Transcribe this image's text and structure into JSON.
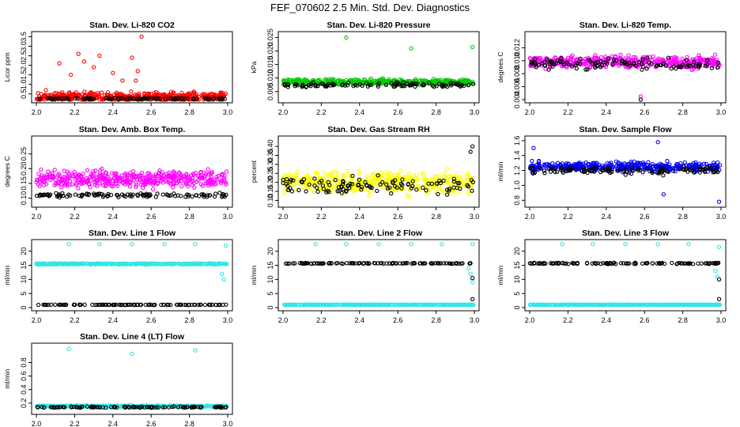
{
  "title": "FEF_070602  2.5 Min. Std. Dev. Diagnostics",
  "colors": {
    "red": "#ff0000",
    "green": "#00cc00",
    "magenta": "#ff00ff",
    "yellow": "#ffff00",
    "blue": "#0000ff",
    "cyan": "#33e6e6",
    "black": "#000000"
  },
  "chart_data": [
    {
      "type": "scatter",
      "title": "Stan. Dev. Li-820 CO2",
      "ylabel": "Licor ppm",
      "xlabel": "",
      "xlim": [
        2.0,
        3.0
      ],
      "ylim": [
        0.2,
        3.6
      ],
      "xticks": [
        "2.0",
        "2.2",
        "2.4",
        "2.6",
        "2.8",
        "3.0"
      ],
      "yticks": [
        "0.5",
        "1.0",
        "1.5",
        "2.0",
        "2.5",
        "3.0",
        "3.5"
      ],
      "series": [
        {
          "name": "color",
          "color": "red",
          "baseline": 0.35,
          "spread": 0.35,
          "outliers": [
            [
              2.05,
              0.7
            ],
            [
              2.12,
              2.1
            ],
            [
              2.18,
              1.5
            ],
            [
              2.22,
              2.6
            ],
            [
              2.25,
              2.2
            ],
            [
              2.3,
              1.9
            ],
            [
              2.33,
              2.5
            ],
            [
              2.4,
              1.6
            ],
            [
              2.45,
              1.2
            ],
            [
              2.5,
              2.4
            ],
            [
              2.53,
              1.7
            ],
            [
              2.55,
              3.5
            ],
            [
              2.52,
              1.2
            ]
          ]
        },
        {
          "name": "black",
          "color": "black",
          "baseline": 0.25,
          "spread": 0.04
        }
      ]
    },
    {
      "type": "scatter",
      "title": "Stan. Dev. Li-820 Pressure",
      "ylabel": "kPa",
      "xlabel": "",
      "xlim": [
        2.0,
        3.0
      ],
      "ylim": [
        0.002,
        0.026
      ],
      "xticks": [
        "2.0",
        "2.2",
        "2.4",
        "2.6",
        "2.8",
        "3.0"
      ],
      "yticks": [
        "0.005",
        "0.010",
        "0.015",
        "0.020",
        "0.025"
      ],
      "series": [
        {
          "name": "color",
          "color": "green",
          "baseline": 0.0085,
          "spread": 0.0015,
          "outliers": [
            [
              2.33,
              0.025
            ],
            [
              2.67,
              0.021
            ],
            [
              2.99,
              0.0215
            ]
          ]
        },
        {
          "name": "black",
          "color": "black",
          "baseline": 0.0075,
          "spread": 0.0012
        }
      ]
    },
    {
      "type": "scatter",
      "title": "Stan. Dev. Li-820 Temp.",
      "ylabel": "degrees C",
      "xlabel": "",
      "xlim": [
        2.0,
        3.0
      ],
      "ylim": [
        0.004,
        0.014
      ],
      "xticks": [
        "2.0",
        "2.2",
        "2.4",
        "2.6",
        "2.8",
        "3.0"
      ],
      "yticks": [
        "0.004",
        "0.006",
        "0.008",
        "0.010",
        "0.012"
      ],
      "series": [
        {
          "name": "color",
          "color": "magenta",
          "baseline": 0.0098,
          "spread": 0.0014,
          "outliers": [
            [
              2.58,
              0.0045
            ]
          ]
        },
        {
          "name": "black",
          "color": "black",
          "baseline": 0.0095,
          "spread": 0.0012,
          "outliers": [
            [
              2.58,
              0.0038
            ]
          ]
        }
      ]
    },
    {
      "type": "scatter",
      "title": "Stan. Dev. Amb. Box Temp.",
      "ylabel": "degrees C",
      "xlabel": "",
      "xlim": [
        2.0,
        3.0
      ],
      "ylim": [
        0.08,
        0.3
      ],
      "xticks": [
        "2.0",
        "2.2",
        "2.4",
        "2.6",
        "2.8",
        "3.0"
      ],
      "yticks": [
        "0.10",
        "0.15",
        "0.20",
        "0.25"
      ],
      "series": [
        {
          "name": "color",
          "color": "magenta",
          "baseline": 0.165,
          "spread": 0.04
        },
        {
          "name": "black",
          "color": "black",
          "baseline": 0.11,
          "spread": 0.01
        }
      ]
    },
    {
      "type": "scatter",
      "title": "Stan. Dev. Gas Stream RH",
      "ylabel": "percent",
      "xlabel": "",
      "xlim": [
        2.0,
        3.0
      ],
      "ylim": [
        0.08,
        0.44
      ],
      "xticks": [
        "2.0",
        "2.2",
        "2.4",
        "2.6",
        "2.8",
        "3.0"
      ],
      "yticks": [
        "0.10",
        "0.15",
        "0.20",
        "0.25",
        "0.30",
        "0.35",
        "0.40"
      ],
      "series": [
        {
          "name": "color",
          "color": "yellow",
          "baseline": 0.2,
          "spread": 0.09
        },
        {
          "name": "black",
          "color": "black",
          "baseline": 0.18,
          "spread": 0.07,
          "outliers": [
            [
              2.99,
              0.4
            ],
            [
              2.98,
              0.37
            ]
          ]
        }
      ]
    },
    {
      "type": "scatter",
      "title": "Stan. Dev. Sample Flow",
      "ylabel": "ml/min",
      "xlabel": "",
      "xlim": [
        2.0,
        3.0
      ],
      "ylim": [
        0.75,
        1.62
      ],
      "xticks": [
        "2.0",
        "2.2",
        "2.4",
        "2.6",
        "2.8",
        "3.0"
      ],
      "yticks": [
        "0.8",
        "1.0",
        "1.2",
        "1.4",
        "1.6"
      ],
      "series": [
        {
          "name": "color",
          "color": "blue",
          "baseline": 1.25,
          "spread": 0.09,
          "outliers": [
            [
              2.67,
              1.58
            ],
            [
              2.02,
              1.5
            ],
            [
              2.7,
              0.88
            ],
            [
              2.99,
              0.78
            ]
          ]
        },
        {
          "name": "black",
          "color": "black",
          "baseline": 1.2,
          "spread": 0.07
        }
      ]
    },
    {
      "type": "scatter",
      "title": "Stan. Dev. Line 1 Flow",
      "ylabel": "ml/min",
      "xlabel": "",
      "xlim": [
        2.0,
        3.0
      ],
      "ylim": [
        0,
        23
      ],
      "xticks": [
        "2.0",
        "2.2",
        "2.4",
        "2.6",
        "2.8",
        "3.0"
      ],
      "yticks": [
        "0",
        "5",
        "10",
        "15",
        "20"
      ],
      "series": [
        {
          "name": "color",
          "color": "cyan",
          "baseline": 15.5,
          "spread": 0.3,
          "outliers": [
            [
              2.17,
              22.5
            ],
            [
              2.33,
              22.5
            ],
            [
              2.5,
              22.5
            ],
            [
              2.67,
              22.5
            ],
            [
              2.83,
              22.5
            ],
            [
              2.99,
              22.0
            ],
            [
              2.98,
              10.0
            ],
            [
              2.97,
              12.0
            ]
          ]
        },
        {
          "name": "black",
          "color": "black",
          "baseline": 1.0,
          "spread": 0.1
        }
      ]
    },
    {
      "type": "scatter",
      "title": "Stan. Dev. Line 2 Flow",
      "ylabel": "ml/min",
      "xlabel": "",
      "xlim": [
        2.0,
        3.0
      ],
      "ylim": [
        0,
        23
      ],
      "xticks": [
        "2.0",
        "2.2",
        "2.4",
        "2.6",
        "2.8",
        "3.0"
      ],
      "yticks": [
        "0",
        "5",
        "10",
        "15",
        "20"
      ],
      "series": [
        {
          "name": "color",
          "color": "cyan",
          "baseline": 1.0,
          "spread": 0.1,
          "outliers": [
            [
              2.17,
              22.5
            ],
            [
              2.33,
              22.5
            ],
            [
              2.5,
              22.5
            ],
            [
              2.67,
              22.5
            ],
            [
              2.83,
              22.5
            ],
            [
              2.99,
              22.5
            ],
            [
              2.98,
              12.0
            ],
            [
              2.97,
              14.0
            ],
            [
              2.99,
              9.0
            ]
          ]
        },
        {
          "name": "black",
          "color": "black",
          "baseline": 15.7,
          "spread": 0.2,
          "outliers": [
            [
              2.99,
              10.5
            ],
            [
              2.99,
              3.0
            ]
          ]
        }
      ]
    },
    {
      "type": "scatter",
      "title": "Stan. Dev. Line 3 Flow",
      "ylabel": "ml/min",
      "xlabel": "",
      "xlim": [
        2.0,
        3.0
      ],
      "ylim": [
        0,
        23
      ],
      "xticks": [
        "2.0",
        "2.2",
        "2.4",
        "2.6",
        "2.8",
        "3.0"
      ],
      "yticks": [
        "0",
        "5",
        "10",
        "15",
        "20"
      ],
      "series": [
        {
          "name": "color",
          "color": "cyan",
          "baseline": 1.0,
          "spread": 0.1,
          "outliers": [
            [
              2.17,
              22.5
            ],
            [
              2.33,
              22.5
            ],
            [
              2.5,
              22.5
            ],
            [
              2.67,
              22.5
            ],
            [
              2.83,
              22.5
            ],
            [
              2.99,
              21.5
            ],
            [
              2.98,
              11.0
            ],
            [
              2.97,
              13.0
            ]
          ]
        },
        {
          "name": "black",
          "color": "black",
          "baseline": 15.7,
          "spread": 0.3,
          "outliers": [
            [
              2.99,
              10.0
            ],
            [
              2.99,
              3.0
            ]
          ]
        }
      ]
    },
    {
      "type": "scatter",
      "title": "Stan. Dev. Line 4 (LT) Flow",
      "ylabel": "ml/min",
      "xlabel": "",
      "xlim": [
        2.0,
        3.0
      ],
      "ylim": [
        0.08,
        1.04
      ],
      "xticks": [
        "2.0",
        "2.2",
        "2.4",
        "2.6",
        "2.8",
        "3.0"
      ],
      "yticks": [
        "0.2",
        "0.4",
        "0.6",
        "0.8"
      ],
      "series": [
        {
          "name": "color",
          "color": "cyan",
          "baseline": 0.155,
          "spread": 0.015,
          "outliers": [
            [
              2.17,
              1.0
            ],
            [
              2.5,
              0.93
            ],
            [
              2.83,
              0.98
            ]
          ]
        },
        {
          "name": "black",
          "color": "black",
          "baseline": 0.14,
          "spread": 0.012
        }
      ]
    }
  ]
}
